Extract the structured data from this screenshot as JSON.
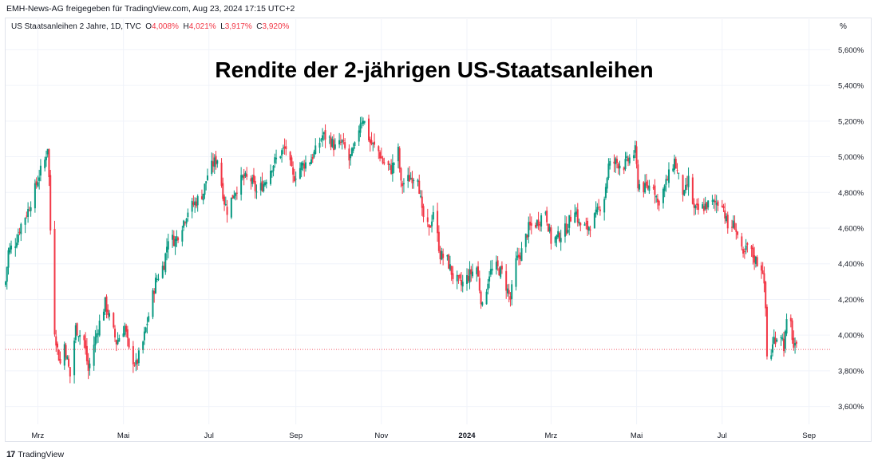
{
  "header": {
    "text": "EMH-News-AG freigegeben für TradingView.com, Aug 23, 2024 17:15 UTC+2"
  },
  "symbol": {
    "name": "US Staatsanleihen 2 Jahre, 1D, TVC",
    "open_label": "O",
    "open": "4,008%",
    "high_label": "H",
    "high": "4,021%",
    "low_label": "L",
    "low": "3,917%",
    "close_label": "C",
    "close": "3,920%"
  },
  "unit": "%",
  "footer": {
    "brand": "TradingView"
  },
  "colors": {
    "up": "#089981",
    "down": "#f23645",
    "grid": "#f0f3fa",
    "lastline": "#f23645"
  },
  "chart_data": {
    "type": "candlestick",
    "title": "Rendite der 2-jährigen US-Staatsanleihen",
    "ylim": [
      3.5,
      5.7
    ],
    "y_ticks": [
      {
        "value": 3.6,
        "label": "3,600%"
      },
      {
        "value": 3.8,
        "label": "3,800%"
      },
      {
        "value": 4.0,
        "label": "4,000%"
      },
      {
        "value": 4.2,
        "label": "4,200%"
      },
      {
        "value": 4.4,
        "label": "4,400%"
      },
      {
        "value": 4.6,
        "label": "4,600%"
      },
      {
        "value": 4.8,
        "label": "4,800%"
      },
      {
        "value": 5.0,
        "label": "5,000%"
      },
      {
        "value": 5.2,
        "label": "5,200%"
      },
      {
        "value": 5.4,
        "label": "5,400%"
      },
      {
        "value": 5.6,
        "label": "5,600%"
      }
    ],
    "x_ticks": [
      {
        "date": "2023-03-01",
        "label": "Mrz"
      },
      {
        "date": "2023-05-01",
        "label": "Mai"
      },
      {
        "date": "2023-07-01",
        "label": "Jul"
      },
      {
        "date": "2023-09-01",
        "label": "Sep"
      },
      {
        "date": "2023-11-01",
        "label": "Nov"
      },
      {
        "date": "2024-01-01",
        "label": "2024",
        "bold": true
      },
      {
        "date": "2024-03-01",
        "label": "Mrz"
      },
      {
        "date": "2024-05-01",
        "label": "Mai"
      },
      {
        "date": "2024-07-01",
        "label": "Jul"
      },
      {
        "date": "2024-09-01",
        "label": "Sep"
      }
    ],
    "x_range": [
      "2023-02-06",
      "2024-09-16"
    ],
    "last_value": 3.92,
    "close_path": [
      [
        "2023-02-06",
        4.3
      ],
      [
        "2023-02-08",
        4.47
      ],
      [
        "2023-02-13",
        4.52
      ],
      [
        "2023-02-17",
        4.62
      ],
      [
        "2023-02-22",
        4.7
      ],
      [
        "2023-02-27",
        4.82
      ],
      [
        "2023-03-02",
        4.9
      ],
      [
        "2023-03-06",
        4.98
      ],
      [
        "2023-03-08",
        5.06
      ],
      [
        "2023-03-09",
        4.88
      ],
      [
        "2023-03-10",
        4.59
      ],
      [
        "2023-03-13",
        4.03
      ],
      [
        "2023-03-15",
        3.92
      ],
      [
        "2023-03-17",
        3.84
      ],
      [
        "2023-03-20",
        3.95
      ],
      [
        "2023-03-24",
        3.77
      ],
      [
        "2023-03-28",
        4.04
      ],
      [
        "2023-04-03",
        3.97
      ],
      [
        "2023-04-06",
        3.8
      ],
      [
        "2023-04-10",
        3.95
      ],
      [
        "2023-04-14",
        4.07
      ],
      [
        "2023-04-18",
        4.18
      ],
      [
        "2023-04-21",
        4.1
      ],
      [
        "2023-04-26",
        3.96
      ],
      [
        "2023-05-02",
        4.05
      ],
      [
        "2023-05-05",
        3.91
      ],
      [
        "2023-05-10",
        3.83
      ],
      [
        "2023-05-15",
        3.96
      ],
      [
        "2023-05-19",
        4.11
      ],
      [
        "2023-05-24",
        4.3
      ],
      [
        "2023-05-30",
        4.4
      ],
      [
        "2023-06-02",
        4.55
      ],
      [
        "2023-06-07",
        4.53
      ],
      [
        "2023-06-12",
        4.62
      ],
      [
        "2023-06-16",
        4.7
      ],
      [
        "2023-06-22",
        4.75
      ],
      [
        "2023-06-27",
        4.8
      ],
      [
        "2023-06-30",
        4.9
      ],
      [
        "2023-07-04",
        4.96
      ],
      [
        "2023-07-07",
        4.99
      ],
      [
        "2023-07-12",
        4.75
      ],
      [
        "2023-07-14",
        4.7
      ],
      [
        "2023-07-19",
        4.8
      ],
      [
        "2023-07-25",
        4.88
      ],
      [
        "2023-07-31",
        4.87
      ],
      [
        "2023-08-04",
        4.8
      ],
      [
        "2023-08-09",
        4.85
      ],
      [
        "2023-08-15",
        4.95
      ],
      [
        "2023-08-21",
        5.02
      ],
      [
        "2023-08-25",
        5.05
      ],
      [
        "2023-08-30",
        4.88
      ],
      [
        "2023-09-05",
        4.95
      ],
      [
        "2023-09-11",
        4.98
      ],
      [
        "2023-09-15",
        5.03
      ],
      [
        "2023-09-20",
        5.12
      ],
      [
        "2023-09-25",
        5.1
      ],
      [
        "2023-09-29",
        5.05
      ],
      [
        "2023-10-04",
        5.08
      ],
      [
        "2023-10-09",
        4.98
      ],
      [
        "2023-10-13",
        5.05
      ],
      [
        "2023-10-17",
        5.2
      ],
      [
        "2023-10-19",
        5.22
      ],
      [
        "2023-10-24",
        5.08
      ],
      [
        "2023-10-30",
        5.03
      ],
      [
        "2023-11-02",
        4.97
      ],
      [
        "2023-11-08",
        4.93
      ],
      [
        "2023-11-13",
        5.03
      ],
      [
        "2023-11-15",
        4.84
      ],
      [
        "2023-11-21",
        4.88
      ],
      [
        "2023-11-27",
        4.9
      ],
      [
        "2023-11-30",
        4.68
      ],
      [
        "2023-12-05",
        4.58
      ],
      [
        "2023-12-08",
        4.7
      ],
      [
        "2023-12-13",
        4.45
      ],
      [
        "2023-12-18",
        4.42
      ],
      [
        "2023-12-22",
        4.33
      ],
      [
        "2023-12-28",
        4.28
      ],
      [
        "2024-01-03",
        4.34
      ],
      [
        "2024-01-08",
        4.38
      ],
      [
        "2024-01-12",
        4.15
      ],
      [
        "2024-01-17",
        4.35
      ],
      [
        "2024-01-22",
        4.38
      ],
      [
        "2024-01-26",
        4.35
      ],
      [
        "2024-02-01",
        4.2
      ],
      [
        "2024-02-05",
        4.41
      ],
      [
        "2024-02-09",
        4.47
      ],
      [
        "2024-02-14",
        4.6
      ],
      [
        "2024-02-20",
        4.63
      ],
      [
        "2024-02-26",
        4.7
      ],
      [
        "2024-03-01",
        4.53
      ],
      [
        "2024-03-06",
        4.55
      ],
      [
        "2024-03-12",
        4.6
      ],
      [
        "2024-03-18",
        4.72
      ],
      [
        "2024-03-21",
        4.62
      ],
      [
        "2024-03-27",
        4.6
      ],
      [
        "2024-04-02",
        4.67
      ],
      [
        "2024-04-08",
        4.78
      ],
      [
        "2024-04-11",
        4.95
      ],
      [
        "2024-04-16",
        4.97
      ],
      [
        "2024-04-22",
        4.95
      ],
      [
        "2024-04-26",
        4.99
      ],
      [
        "2024-04-30",
        5.03
      ],
      [
        "2024-05-02",
        4.85
      ],
      [
        "2024-05-07",
        4.82
      ],
      [
        "2024-05-13",
        4.85
      ],
      [
        "2024-05-16",
        4.74
      ],
      [
        "2024-05-21",
        4.83
      ],
      [
        "2024-05-28",
        4.98
      ],
      [
        "2024-05-31",
        4.88
      ],
      [
        "2024-06-04",
        4.78
      ],
      [
        "2024-06-07",
        4.87
      ],
      [
        "2024-06-11",
        4.7
      ],
      [
        "2024-06-14",
        4.7
      ],
      [
        "2024-06-20",
        4.73
      ],
      [
        "2024-06-26",
        4.74
      ],
      [
        "2024-07-01",
        4.75
      ],
      [
        "2024-07-05",
        4.6
      ],
      [
        "2024-07-10",
        4.62
      ],
      [
        "2024-07-16",
        4.43
      ],
      [
        "2024-07-19",
        4.5
      ],
      [
        "2024-07-24",
        4.43
      ],
      [
        "2024-07-30",
        4.37
      ],
      [
        "2024-08-01",
        4.15
      ],
      [
        "2024-08-02",
        3.88
      ],
      [
        "2024-08-05",
        3.9
      ],
      [
        "2024-08-07",
        3.98
      ],
      [
        "2024-08-12",
        4.01
      ],
      [
        "2024-08-14",
        3.94
      ],
      [
        "2024-08-16",
        4.06
      ],
      [
        "2024-08-19",
        4.06
      ],
      [
        "2024-08-21",
        3.93
      ],
      [
        "2024-08-23",
        3.92
      ]
    ]
  }
}
